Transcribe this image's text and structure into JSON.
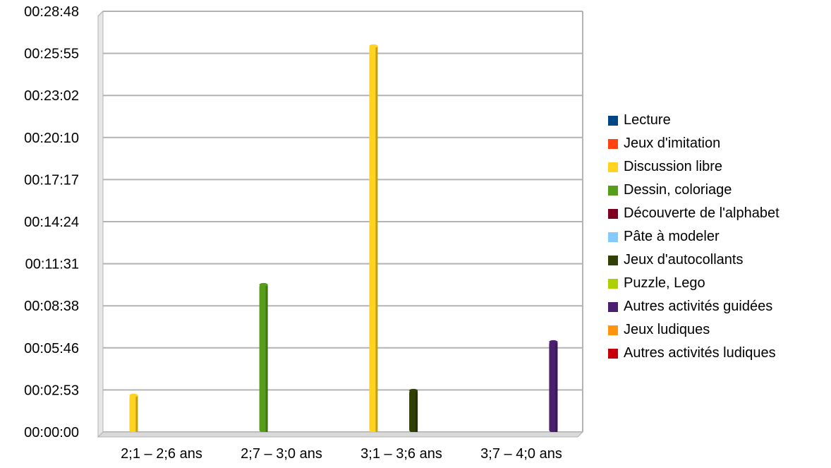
{
  "chart_data": {
    "type": "bar",
    "title": "",
    "xlabel": "",
    "ylabel": "",
    "categories": [
      "2;1 – 2;6 ans",
      "2;7 – 3;0 ans",
      "3;1 – 3;6 ans",
      "3;7 – 4;0 ans"
    ],
    "y_ticks": [
      "00:00:00",
      "00:02:53",
      "00:05:46",
      "00:08:38",
      "00:11:31",
      "00:14:24",
      "00:17:17",
      "00:20:10",
      "00:23:02",
      "00:25:55",
      "00:28:48"
    ],
    "ylim_seconds": [
      0,
      1728
    ],
    "grid": true,
    "legend_position": "right",
    "series": [
      {
        "name": "Lecture",
        "color": "#004586",
        "values": [
          0,
          0,
          0,
          0
        ]
      },
      {
        "name": "Jeux d'imitation",
        "color": "#ff420e",
        "values": [
          0,
          0,
          0,
          0
        ]
      },
      {
        "name": "Discussion libre",
        "color": "#ffd320",
        "values": [
          150,
          0,
          1585,
          0
        ]
      },
      {
        "name": "Dessin, coloriage",
        "color": "#579d1c",
        "values": [
          0,
          605,
          0,
          0
        ]
      },
      {
        "name": "Découverte de l'alphabet",
        "color": "#7e0021",
        "values": [
          0,
          0,
          0,
          0
        ]
      },
      {
        "name": "Pâte à modeler",
        "color": "#83caff",
        "values": [
          0,
          0,
          0,
          0
        ]
      },
      {
        "name": "Jeux d'autocollants",
        "color": "#314004",
        "values": [
          0,
          0,
          170,
          0
        ]
      },
      {
        "name": "Puzzle, Lego",
        "color": "#aecf00",
        "values": [
          0,
          0,
          0,
          0
        ]
      },
      {
        "name": "Autres activités guidées",
        "color": "#4b1f6f",
        "values": [
          0,
          0,
          0,
          370
        ]
      },
      {
        "name": "Jeux ludiques",
        "color": "#ff950e",
        "values": [
          0,
          0,
          0,
          0
        ]
      },
      {
        "name": "Autres activités ludiques",
        "color": "#c5000b",
        "values": [
          0,
          0,
          0,
          0
        ]
      }
    ]
  }
}
